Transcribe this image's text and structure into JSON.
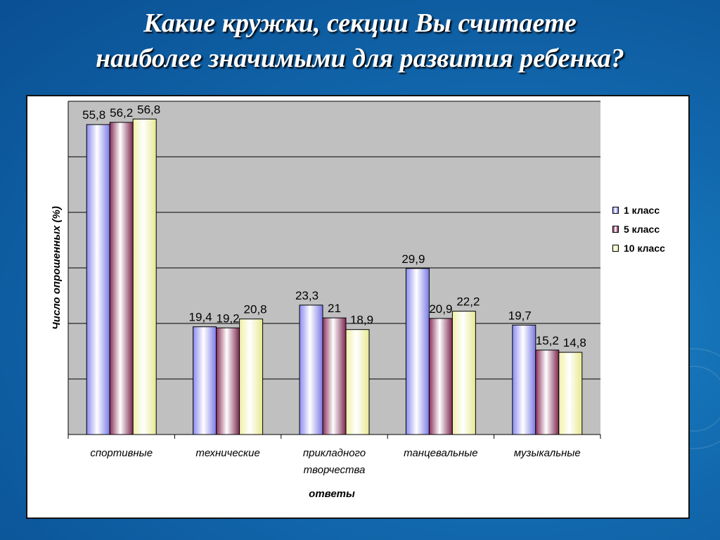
{
  "title": {
    "line1": "Какие кружки, секции Вы считаете",
    "line2": "наиболее значимыми для развития ребенка?"
  },
  "colors": {
    "background": "#1268ad",
    "plot_area": "#c0c0c0",
    "series": [
      "#9999ff",
      "#993366",
      "#ffffcc"
    ]
  },
  "chart_data": {
    "type": "bar",
    "title": "Какие кружки, секции Вы считаете наиболее значимыми для развития ребенка?",
    "xlabel": "ответы",
    "ylabel": "Число опрошенных (%)",
    "categories": [
      [
        "спортивные"
      ],
      [
        "технические"
      ],
      [
        "прикладного",
        "творчества"
      ],
      [
        "танцевальные"
      ],
      [
        "музыкальные"
      ]
    ],
    "series": [
      {
        "name": "1 класс",
        "values": [
          55.8,
          19.4,
          23.3,
          29.9,
          19.7
        ],
        "labels": [
          "55,8",
          "19,4",
          "23,3",
          "29,9",
          "19,7"
        ]
      },
      {
        "name": "5 класс",
        "values": [
          56.2,
          19.2,
          21,
          20.9,
          15.2
        ],
        "labels": [
          "56,2",
          "19,2",
          "21",
          "20,9",
          "15,2"
        ]
      },
      {
        "name": "10 класс",
        "values": [
          56.8,
          20.8,
          18.9,
          22.2,
          14.8
        ],
        "labels": [
          "56,8",
          "20,8",
          "18,9",
          "22,2",
          "14,8"
        ]
      }
    ],
    "ylim": [
      0,
      60
    ],
    "grid": true,
    "legend_position": "right"
  }
}
